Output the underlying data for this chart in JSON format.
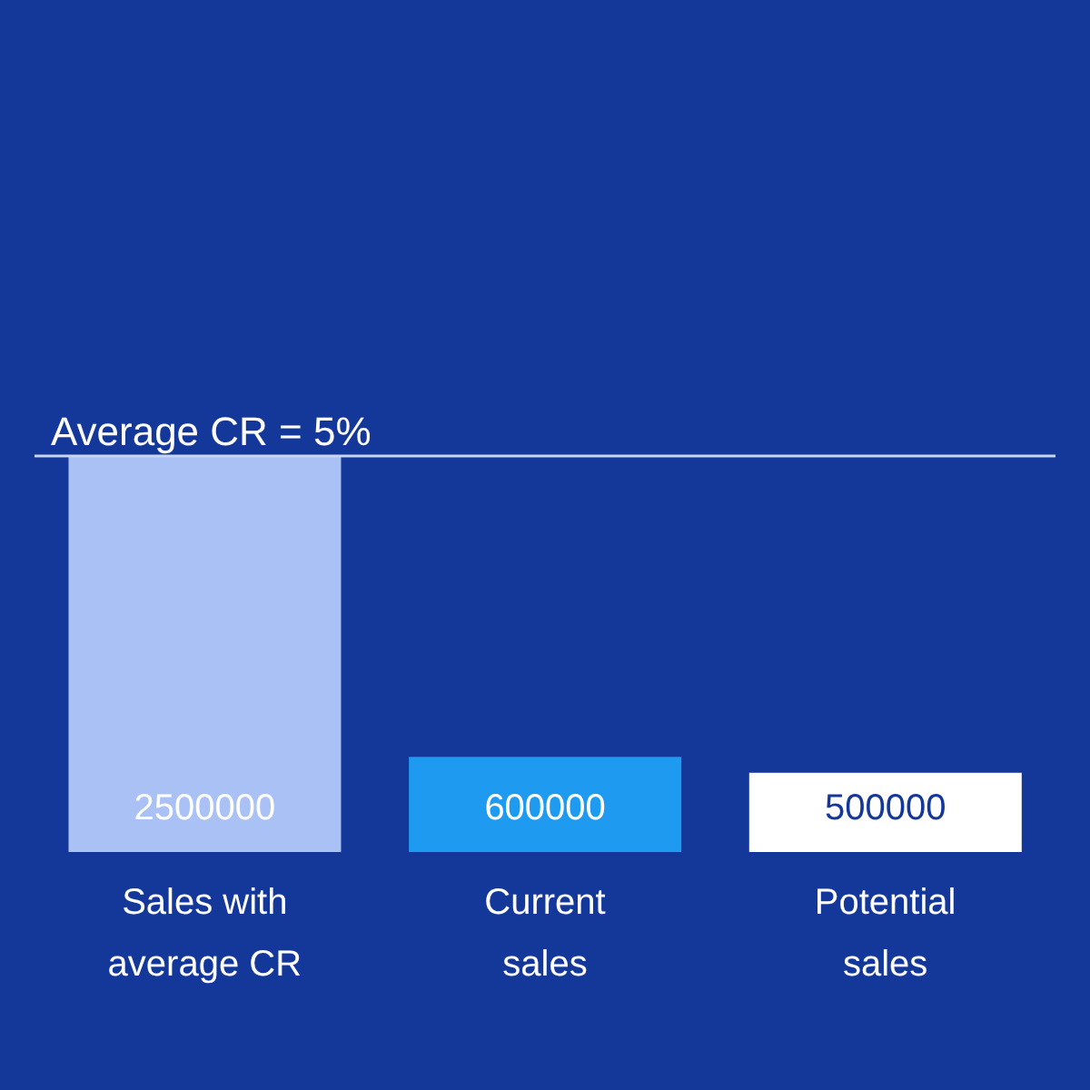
{
  "chart_data": {
    "type": "bar",
    "categories": [
      "Sales with average CR",
      "Current sales",
      "Potential sales"
    ],
    "values": [
      2500000,
      600000,
      500000
    ],
    "colors": [
      "#a9c1f5",
      "#1e9af0",
      "#ffffff"
    ],
    "data_labels": true,
    "ref_lines": [
      {
        "axis": "y",
        "value": 2500000,
        "color": "#c9d6f2"
      }
    ],
    "annotations": [
      {
        "text": "Average CR = 5%",
        "y": 2500000
      }
    ],
    "ylim": [
      0,
      2500000
    ],
    "tick_labels": "x"
  }
}
